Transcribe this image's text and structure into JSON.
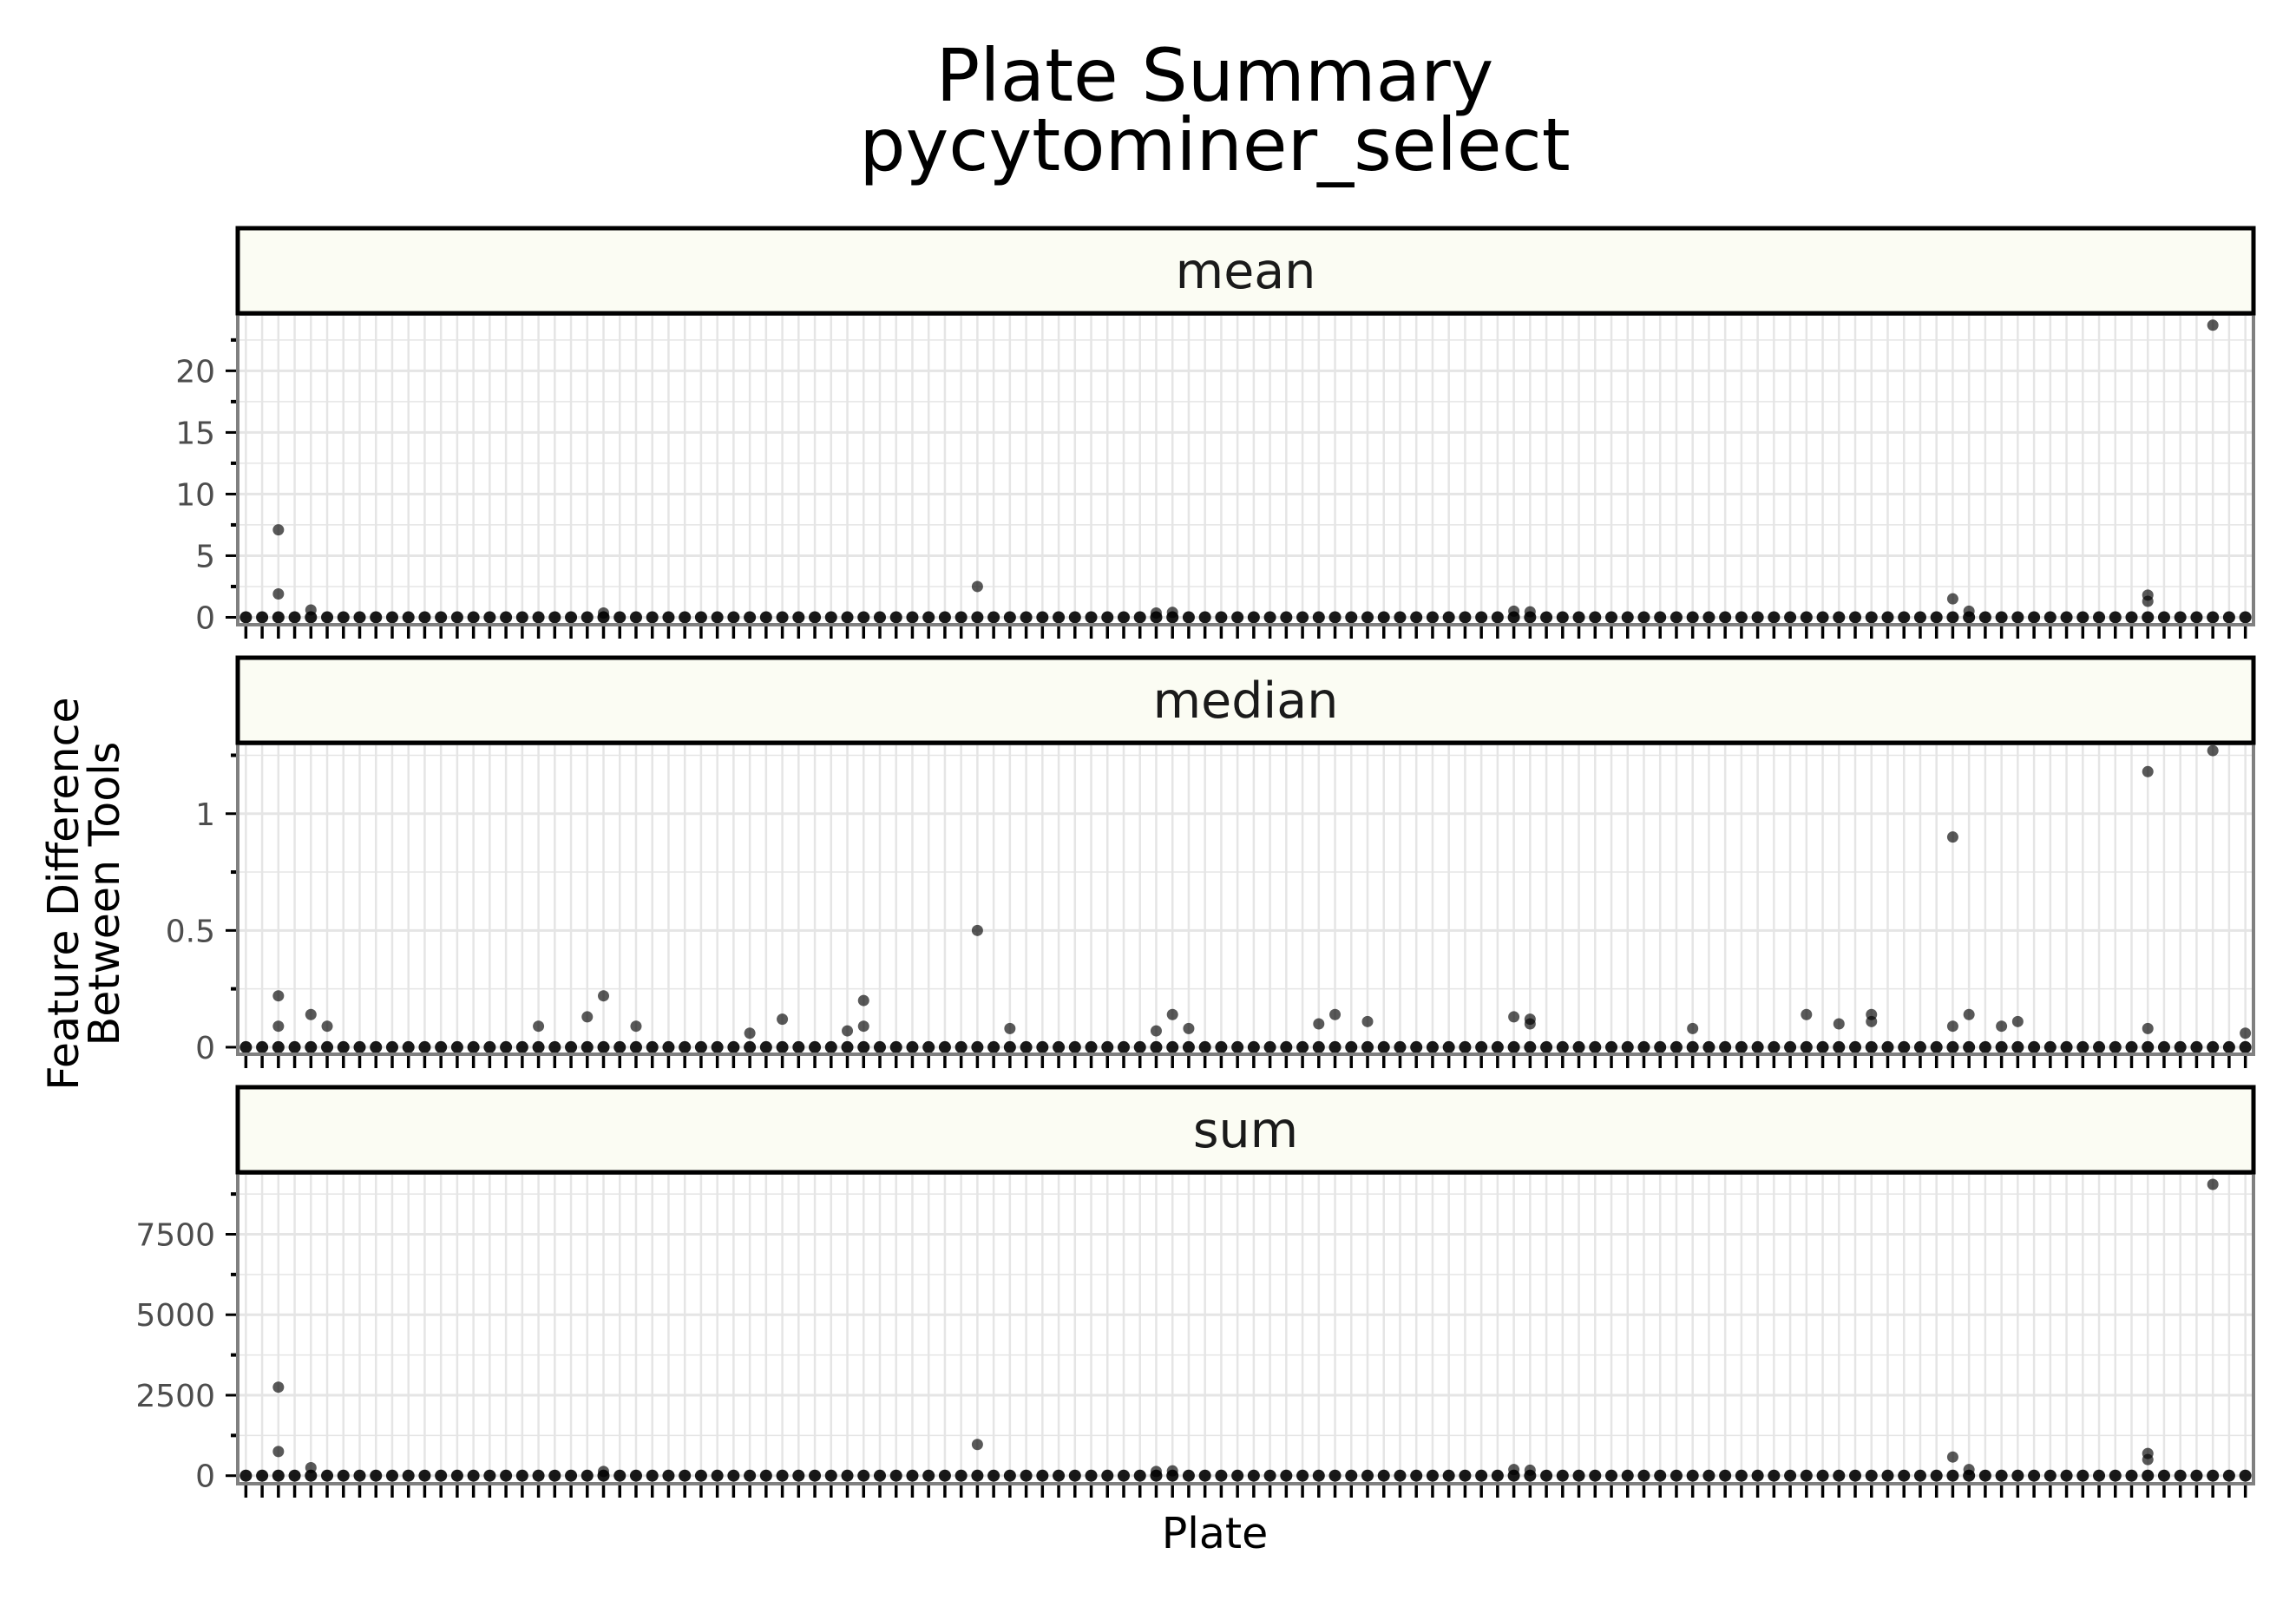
{
  "chart_data": {
    "type": "scatter",
    "title": "Plate Summary",
    "subtitle": "pycytominer_select",
    "xlabel": "Plate",
    "ylabel_lines": [
      "Feature Difference",
      "Between Tools"
    ],
    "x_count": 124,
    "x_tick_labels_shown": false,
    "grid": true,
    "legend": "none",
    "colors": {
      "strip_fill": "#fbfcf3",
      "strip_border": "#000000",
      "grid": "#e5e5e5",
      "point": "#000000",
      "panel_border": "#808080"
    },
    "facets": [
      {
        "name": "mean",
        "ylim": [
          -0.6,
          24.6
        ],
        "yticks": [
          0,
          5,
          10,
          15,
          20
        ],
        "ytick_labels": [
          "0",
          "5",
          "10",
          "15",
          "20"
        ],
        "baseline": 0,
        "outliers": [
          {
            "x": 2,
            "y": 7.1
          },
          {
            "x": 2,
            "y": 1.9
          },
          {
            "x": 4,
            "y": 0.6
          },
          {
            "x": 22,
            "y": 0.35
          },
          {
            "x": 45,
            "y": 2.5
          },
          {
            "x": 56,
            "y": 0.35
          },
          {
            "x": 57,
            "y": 0.4
          },
          {
            "x": 78,
            "y": 0.5
          },
          {
            "x": 79,
            "y": 0.45
          },
          {
            "x": 105,
            "y": 1.5
          },
          {
            "x": 106,
            "y": 0.5
          },
          {
            "x": 117,
            "y": 1.8
          },
          {
            "x": 117,
            "y": 1.3
          },
          {
            "x": 121,
            "y": 23.7
          }
        ]
      },
      {
        "name": "median",
        "ylim": [
          -0.03,
          1.3
        ],
        "yticks": [
          0,
          0.5,
          1
        ],
        "ytick_labels": [
          "0",
          "0.5",
          "1"
        ],
        "baseline": 0,
        "outliers": [
          {
            "x": 2,
            "y": 0.22
          },
          {
            "x": 2,
            "y": 0.09
          },
          {
            "x": 4,
            "y": 0.14
          },
          {
            "x": 5,
            "y": 0.09
          },
          {
            "x": 18,
            "y": 0.09
          },
          {
            "x": 21,
            "y": 0.13
          },
          {
            "x": 22,
            "y": 0.22
          },
          {
            "x": 24,
            "y": 0.09
          },
          {
            "x": 31,
            "y": 0.06
          },
          {
            "x": 33,
            "y": 0.12
          },
          {
            "x": 37,
            "y": 0.07
          },
          {
            "x": 38,
            "y": 0.2
          },
          {
            "x": 38,
            "y": 0.09
          },
          {
            "x": 45,
            "y": 0.5
          },
          {
            "x": 47,
            "y": 0.08
          },
          {
            "x": 56,
            "y": 0.07
          },
          {
            "x": 57,
            "y": 0.14
          },
          {
            "x": 58,
            "y": 0.08
          },
          {
            "x": 66,
            "y": 0.1
          },
          {
            "x": 67,
            "y": 0.14
          },
          {
            "x": 69,
            "y": 0.11
          },
          {
            "x": 78,
            "y": 0.13
          },
          {
            "x": 79,
            "y": 0.12
          },
          {
            "x": 79,
            "y": 0.1
          },
          {
            "x": 89,
            "y": 0.08
          },
          {
            "x": 96,
            "y": 0.14
          },
          {
            "x": 98,
            "y": 0.1
          },
          {
            "x": 100,
            "y": 0.14
          },
          {
            "x": 100,
            "y": 0.11
          },
          {
            "x": 105,
            "y": 0.9
          },
          {
            "x": 105,
            "y": 0.09
          },
          {
            "x": 106,
            "y": 0.14
          },
          {
            "x": 108,
            "y": 0.09
          },
          {
            "x": 109,
            "y": 0.11
          },
          {
            "x": 117,
            "y": 1.18
          },
          {
            "x": 117,
            "y": 0.08
          },
          {
            "x": 121,
            "y": 1.27
          },
          {
            "x": 123,
            "y": 0.06
          }
        ]
      },
      {
        "name": "sum",
        "ylim": [
          -250,
          9400
        ],
        "yticks": [
          0,
          2500,
          5000,
          7500
        ],
        "ytick_labels": [
          "0",
          "2500",
          "5000",
          "7500"
        ],
        "baseline": 0,
        "outliers": [
          {
            "x": 2,
            "y": 2750
          },
          {
            "x": 2,
            "y": 750
          },
          {
            "x": 4,
            "y": 250
          },
          {
            "x": 22,
            "y": 130
          },
          {
            "x": 45,
            "y": 970
          },
          {
            "x": 56,
            "y": 130
          },
          {
            "x": 57,
            "y": 150
          },
          {
            "x": 78,
            "y": 190
          },
          {
            "x": 79,
            "y": 170
          },
          {
            "x": 105,
            "y": 580
          },
          {
            "x": 106,
            "y": 190
          },
          {
            "x": 117,
            "y": 690
          },
          {
            "x": 117,
            "y": 500
          },
          {
            "x": 121,
            "y": 9050
          }
        ]
      }
    ]
  }
}
